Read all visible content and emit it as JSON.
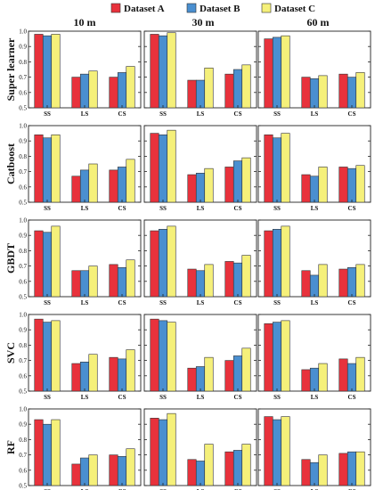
{
  "legend": {
    "entries": [
      {
        "label": "Dataset A",
        "color": "#e8323c"
      },
      {
        "label": "Dataset B",
        "color": "#4a8fd0"
      },
      {
        "label": "Dataset C",
        "color": "#f5f07a"
      }
    ]
  },
  "column_titles": [
    "10 m",
    "30 m",
    "60 m"
  ],
  "row_titles": [
    "Super learner",
    "Catboost",
    "GBDT",
    "SVC",
    "RF"
  ],
  "chart_data": {
    "type": "bar",
    "categories": [
      "SS",
      "LS",
      "CS"
    ],
    "series_names": [
      "Dataset A",
      "Dataset B",
      "Dataset C"
    ],
    "ylim": [
      0.5,
      1.0
    ],
    "yticks": [
      0.5,
      0.6,
      0.7,
      0.8,
      0.9,
      1.0
    ],
    "ytick_labels": [
      "0.5",
      "0.6",
      "0.7",
      "0.8",
      "0.9",
      "1.0"
    ],
    "grid": false,
    "panels": [
      {
        "row": "Super learner",
        "col": "10 m",
        "values": [
          [
            0.98,
            0.97,
            0.98
          ],
          [
            0.7,
            0.72,
            0.74
          ],
          [
            0.7,
            0.73,
            0.77
          ]
        ]
      },
      {
        "row": "Super learner",
        "col": "30 m",
        "values": [
          [
            0.98,
            0.97,
            0.99
          ],
          [
            0.68,
            0.68,
            0.76
          ],
          [
            0.72,
            0.75,
            0.78
          ]
        ]
      },
      {
        "row": "Super learner",
        "col": "60 m",
        "values": [
          [
            0.95,
            0.96,
            0.97
          ],
          [
            0.7,
            0.69,
            0.71
          ],
          [
            0.72,
            0.7,
            0.73
          ]
        ]
      },
      {
        "row": "Catboost",
        "col": "10 m",
        "values": [
          [
            0.94,
            0.92,
            0.94
          ],
          [
            0.67,
            0.71,
            0.75
          ],
          [
            0.71,
            0.73,
            0.78
          ]
        ]
      },
      {
        "row": "Catboost",
        "col": "30 m",
        "values": [
          [
            0.95,
            0.94,
            0.97
          ],
          [
            0.68,
            0.69,
            0.72
          ],
          [
            0.73,
            0.77,
            0.79
          ]
        ]
      },
      {
        "row": "Catboost",
        "col": "60 m",
        "values": [
          [
            0.94,
            0.92,
            0.95
          ],
          [
            0.68,
            0.67,
            0.73
          ],
          [
            0.73,
            0.72,
            0.74
          ]
        ]
      },
      {
        "row": "GBDT",
        "col": "10 m",
        "values": [
          [
            0.93,
            0.92,
            0.96
          ],
          [
            0.67,
            0.67,
            0.7
          ],
          [
            0.71,
            0.69,
            0.74
          ]
        ]
      },
      {
        "row": "GBDT",
        "col": "30 m",
        "values": [
          [
            0.93,
            0.94,
            0.96
          ],
          [
            0.68,
            0.67,
            0.71
          ],
          [
            0.73,
            0.72,
            0.77
          ]
        ]
      },
      {
        "row": "GBDT",
        "col": "60 m",
        "values": [
          [
            0.93,
            0.94,
            0.96
          ],
          [
            0.67,
            0.64,
            0.71
          ],
          [
            0.68,
            0.69,
            0.71
          ]
        ]
      },
      {
        "row": "SVC",
        "col": "10 m",
        "values": [
          [
            0.97,
            0.95,
            0.96
          ],
          [
            0.68,
            0.69,
            0.74
          ],
          [
            0.72,
            0.71,
            0.77
          ]
        ]
      },
      {
        "row": "SVC",
        "col": "30 m",
        "values": [
          [
            0.97,
            0.96,
            0.95
          ],
          [
            0.65,
            0.66,
            0.72
          ],
          [
            0.7,
            0.73,
            0.78
          ]
        ]
      },
      {
        "row": "SVC",
        "col": "60 m",
        "values": [
          [
            0.94,
            0.95,
            0.96
          ],
          [
            0.64,
            0.65,
            0.68
          ],
          [
            0.71,
            0.68,
            0.72
          ]
        ]
      },
      {
        "row": "RF",
        "col": "10 m",
        "values": [
          [
            0.93,
            0.9,
            0.93
          ],
          [
            0.64,
            0.68,
            0.7
          ],
          [
            0.7,
            0.69,
            0.74
          ]
        ]
      },
      {
        "row": "RF",
        "col": "30 m",
        "values": [
          [
            0.94,
            0.93,
            0.97
          ],
          [
            0.67,
            0.66,
            0.77
          ],
          [
            0.72,
            0.73,
            0.77
          ]
        ]
      },
      {
        "row": "RF",
        "col": "60 m",
        "values": [
          [
            0.95,
            0.93,
            0.95
          ],
          [
            0.67,
            0.65,
            0.7
          ],
          [
            0.71,
            0.72,
            0.72
          ]
        ]
      }
    ]
  }
}
